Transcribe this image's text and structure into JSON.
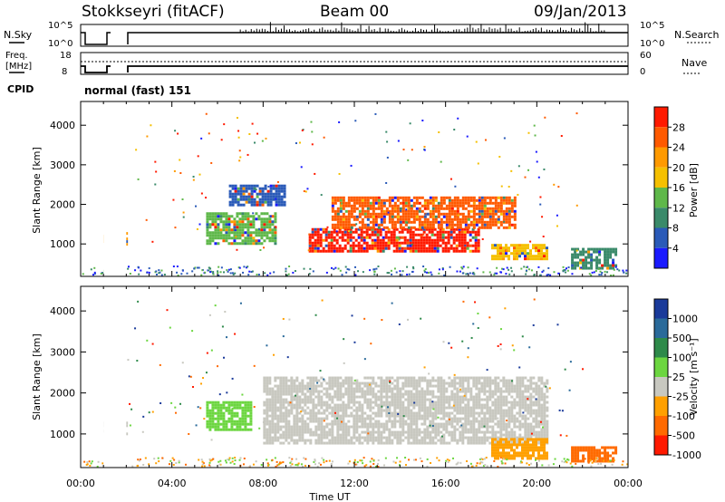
{
  "header": {
    "station": "Stokkseyri (fitACF)",
    "beam": "Beam 00",
    "date": "09/Jan/2013"
  },
  "noise_panel": {
    "left_label": "N.Sky",
    "right_label": "N.Search",
    "left_ticks": [
      "10^5",
      "10^0"
    ],
    "right_ticks": [
      "10^5",
      "10^0"
    ]
  },
  "freq_panel": {
    "left_label_1": "Freq.",
    "left_label_2": "[MHz]",
    "left_ticks": [
      "18",
      "8"
    ],
    "right_ticks": [
      "60",
      "0"
    ],
    "right_label": "Nave"
  },
  "cpid": {
    "label": "CPID",
    "mode": "normal (fast) 151"
  },
  "chart_data": [
    {
      "type": "heatmap",
      "name": "power",
      "ylabel": "Slant Range [km]",
      "yticks": [
        1000,
        2000,
        3000,
        4000
      ],
      "ylim": [
        180,
        4600
      ],
      "colorbar_label": "Power [dB]",
      "colorbar_ticks": [
        "4",
        "8",
        "12",
        "16",
        "20",
        "24",
        "28"
      ],
      "colorbar_colors": [
        "#1a1aff",
        "#2a5ab8",
        "#3a8a6a",
        "#5fb84a",
        "#f5c000",
        "#ff9a00",
        "#ff5a00",
        "#ff1a00"
      ],
      "data_gap_hours": [
        1.0,
        2.0
      ],
      "echo_regions": [
        {
          "t": [
            1.0,
            2.0
          ],
          "range_km": [
            1000,
            1300
          ],
          "value": "10-20"
        },
        {
          "t": [
            5.5,
            8.5
          ],
          "range_km": [
            1000,
            1800
          ],
          "value": "12-24"
        },
        {
          "t": [
            6.5,
            9.0
          ],
          "range_km": [
            2000,
            2500
          ],
          "value": "8-16"
        },
        {
          "t": [
            10.0,
            17.5
          ],
          "range_km": [
            800,
            1400
          ],
          "value": "24-28"
        },
        {
          "t": [
            11.0,
            19.0
          ],
          "range_km": [
            1400,
            2200
          ],
          "value": "20-28"
        },
        {
          "t": [
            18.0,
            20.5
          ],
          "range_km": [
            600,
            1000
          ],
          "value": "12-20"
        },
        {
          "t": [
            21.5,
            23.5
          ],
          "range_km": [
            400,
            900
          ],
          "value": "8-16"
        }
      ]
    },
    {
      "type": "heatmap",
      "name": "velocity",
      "ylabel": "Slant Range [km]",
      "xlabel": "Time UT",
      "xticks": [
        "00:00",
        "04:00",
        "08:00",
        "12:00",
        "16:00",
        "20:00",
        "00:00"
      ],
      "yticks": [
        1000,
        2000,
        3000,
        4000
      ],
      "ylim": [
        180,
        4600
      ],
      "colorbar_label": "Velocity [m s⁻¹]",
      "colorbar_ticks": [
        "1000",
        "500",
        "100",
        "25",
        "-25",
        "-100",
        "-500",
        "-1000"
      ],
      "colorbar_colors": [
        "#1a3a9a",
        "#2a6a9a",
        "#2e8a4a",
        "#6cd640",
        "#c8c8c0",
        "#ffa000",
        "#ff6a00",
        "#ff1a00"
      ],
      "echo_regions": [
        {
          "t": [
            1.0,
            2.0
          ],
          "range_km": [
            1000,
            1300
          ],
          "value": "-25 to 25"
        },
        {
          "t": [
            5.5,
            7.5
          ],
          "range_km": [
            1100,
            1800
          ],
          "value": "100 to 500"
        },
        {
          "t": [
            8.0,
            20.5
          ],
          "range_km": [
            800,
            2400
          ],
          "value": "-25 to 25"
        },
        {
          "t": [
            18.0,
            20.5
          ],
          "range_km": [
            400,
            900
          ],
          "value": "-100 to -500"
        },
        {
          "t": [
            21.5,
            23.5
          ],
          "range_km": [
            350,
            700
          ],
          "value": "-100 to -500"
        }
      ]
    }
  ]
}
